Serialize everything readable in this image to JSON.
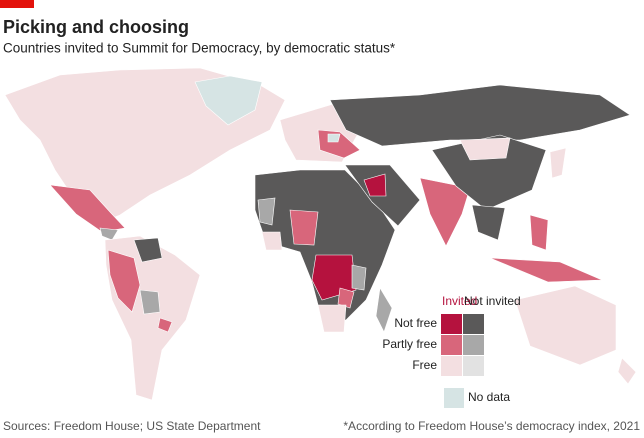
{
  "header": {
    "title": "Picking and choosing",
    "subtitle": "Countries invited to Summit for Democracy, by democratic status*"
  },
  "legend": {
    "columns": [
      "Invited",
      "Not invited"
    ],
    "rows": [
      "Not free",
      "Partly free",
      "Free"
    ],
    "no_data": "No data"
  },
  "footer": {
    "source": "Sources: Freedom House; US State Department",
    "note": "*According to Freedom House’s democracy index, 2021"
  }
}
